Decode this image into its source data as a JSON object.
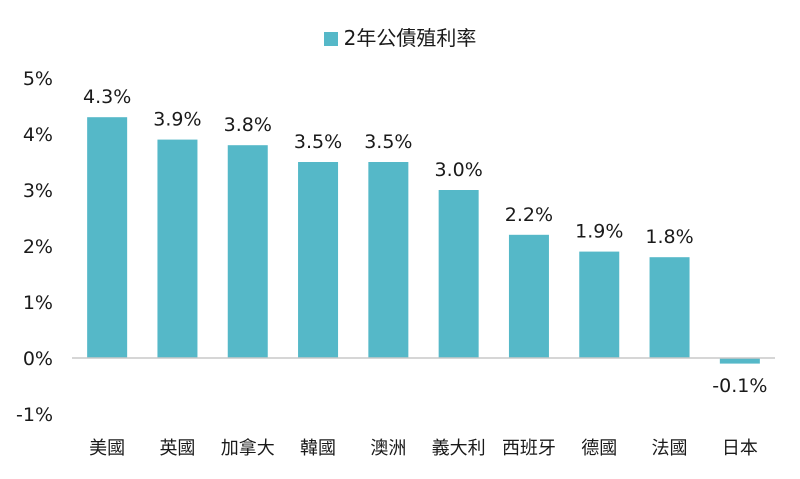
{
  "chart_data": {
    "type": "bar",
    "series": [
      {
        "name": "2年公債殖利率",
        "values": [
          4.3,
          3.9,
          3.8,
          3.5,
          3.5,
          3.0,
          2.2,
          1.9,
          1.8,
          -0.1
        ]
      }
    ],
    "categories": [
      "美國",
      "英國",
      "加拿大",
      "韓國",
      "澳洲",
      "義大利",
      "西班牙",
      "德國",
      "法國",
      "日本"
    ],
    "data_labels": [
      "4.3%",
      "3.9%",
      "3.8%",
      "3.5%",
      "3.5%",
      "3.0%",
      "2.2%",
      "1.9%",
      "1.8%",
      "-0.1%"
    ],
    "y_ticks": [
      -1,
      0,
      1,
      2,
      3,
      4,
      5
    ],
    "y_tick_labels": [
      "-1%",
      "0%",
      "1%",
      "2%",
      "3%",
      "4%",
      "5%"
    ],
    "ylim": [
      -1,
      5
    ],
    "grid": false,
    "legend_position": "top-center",
    "bar_color": "#55b8c8",
    "axis_color": "#c8c8c8"
  }
}
